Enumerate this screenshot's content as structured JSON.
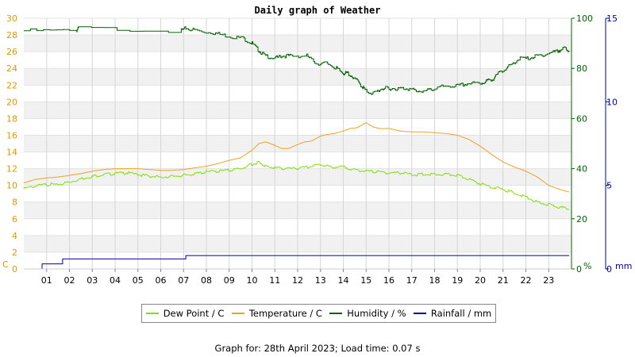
{
  "chart_data": {
    "type": "line",
    "title": "Daily graph of Weather",
    "x_ticks": [
      "01",
      "02",
      "03",
      "04",
      "05",
      "06",
      "07",
      "08",
      "09",
      "10",
      "11",
      "12",
      "13",
      "14",
      "15",
      "16",
      "17",
      "18",
      "19",
      "20",
      "21",
      "22",
      "23"
    ],
    "xlim": [
      0,
      24
    ],
    "axes": {
      "left": {
        "unit_label": "C",
        "range": [
          0,
          30
        ],
        "ticks": [
          0,
          2,
          4,
          6,
          8,
          10,
          12,
          14,
          16,
          18,
          20,
          22,
          24,
          26,
          28,
          30
        ],
        "color": "#e69500"
      },
      "right1": {
        "unit_label": "%",
        "range": [
          0,
          100
        ],
        "ticks": [
          0,
          20,
          40,
          60,
          80,
          100
        ],
        "color": "#006400"
      },
      "right2": {
        "unit_label": "mm",
        "range": [
          0,
          15
        ],
        "ticks": [
          0,
          5,
          10,
          15
        ],
        "color": "#0000a0"
      }
    },
    "series": [
      {
        "name": "Dew Point / C",
        "axis": "left",
        "color": "#7ee000",
        "style": "jagged",
        "x": [
          0,
          0.5,
          1,
          1.5,
          2,
          2.5,
          3,
          3.5,
          4,
          4.5,
          5,
          5.5,
          6,
          6.5,
          7,
          7.5,
          8,
          8.5,
          9,
          9.5,
          10,
          10.3,
          10.6,
          11,
          11.5,
          12,
          12.5,
          13,
          13.5,
          14,
          14.5,
          15,
          15.5,
          16,
          16.5,
          17,
          17.5,
          18,
          18.5,
          19,
          19.5,
          20,
          20.5,
          21,
          21.5,
          22,
          22.5,
          23,
          23.5,
          23.9
        ],
        "y": [
          9.6,
          9.9,
          10.1,
          10.1,
          10.4,
          10.8,
          11.1,
          11.3,
          11.4,
          11.5,
          11.3,
          11.1,
          11.0,
          11.1,
          11.2,
          11.4,
          11.6,
          11.7,
          11.8,
          12.0,
          12.5,
          12.8,
          12.3,
          12.1,
          12.0,
          12.0,
          12.2,
          12.5,
          12.2,
          12.2,
          11.9,
          11.7,
          11.6,
          11.5,
          11.5,
          11.3,
          11.3,
          11.3,
          11.3,
          11.2,
          10.7,
          10.2,
          9.8,
          9.5,
          9.1,
          8.6,
          8.0,
          7.7,
          7.4,
          7.1
        ]
      },
      {
        "name": "Temperature / C",
        "axis": "left",
        "color": "#f0a020",
        "style": "smooth",
        "x": [
          0,
          0.5,
          1,
          1.5,
          2,
          2.5,
          3,
          3.5,
          4,
          4.5,
          5,
          5.5,
          6,
          6.5,
          7,
          7.5,
          8,
          8.5,
          9,
          9.5,
          10,
          10.3,
          10.6,
          11,
          11.3,
          11.6,
          12,
          12.3,
          12.6,
          13,
          13.3,
          13.6,
          14,
          14.3,
          14.6,
          15,
          15.3,
          15.6,
          16,
          16.5,
          17,
          17.5,
          18,
          18.5,
          19,
          19.5,
          20,
          20.5,
          21,
          21.5,
          22,
          22.5,
          23,
          23.5,
          23.9
        ],
        "y": [
          10.3,
          10.7,
          10.9,
          11.0,
          11.2,
          11.4,
          11.7,
          11.9,
          12.0,
          12.0,
          12.0,
          11.9,
          11.8,
          11.8,
          11.9,
          12.1,
          12.3,
          12.6,
          13.0,
          13.3,
          14.2,
          15.0,
          15.2,
          14.8,
          14.4,
          14.4,
          14.9,
          15.2,
          15.3,
          15.9,
          16.1,
          16.2,
          16.5,
          16.8,
          16.9,
          17.5,
          17.0,
          16.8,
          16.8,
          16.5,
          16.4,
          16.4,
          16.3,
          16.2,
          16.0,
          15.5,
          14.7,
          13.7,
          12.8,
          12.2,
          11.7,
          11.0,
          10.0,
          9.5,
          9.2
        ]
      },
      {
        "name": "Humidity / %",
        "axis": "right1",
        "color": "#006400",
        "style": "step",
        "x": [
          0,
          2.3,
          2.4,
          6.9,
          7.1,
          7.6,
          8.4,
          8.9,
          9.6,
          10.0,
          10.3,
          10.6,
          11.0,
          11.3,
          11.7,
          12.4,
          12.8,
          13.3,
          13.7,
          14.0,
          14.2,
          14.5,
          14.8,
          15.0,
          15.3,
          15.7,
          16.0,
          16.4,
          16.8,
          17.2,
          17.6,
          18.0,
          18.5,
          19.0,
          19.5,
          20.0,
          20.3,
          20.6,
          20.9,
          21.3,
          21.7,
          22.1,
          22.5,
          23.0,
          23.4,
          23.7,
          23.9
        ],
        "y": [
          95,
          95,
          96,
          95,
          96,
          95,
          94,
          93,
          92,
          90,
          87,
          85,
          84,
          85,
          85,
          85,
          82,
          82,
          80,
          78,
          78,
          76,
          73,
          71,
          70,
          72,
          72,
          72,
          72,
          71,
          71,
          72,
          73,
          73,
          74,
          74,
          75,
          76,
          79,
          81,
          84,
          84,
          85,
          86,
          87,
          88,
          87
        ]
      },
      {
        "name": "Rainfall / mm",
        "axis": "right2",
        "color": "#0000a0",
        "style": "step",
        "x": [
          0,
          0.8,
          1.7,
          7.1,
          23.9
        ],
        "y": [
          0.0,
          0.3,
          0.6,
          0.8,
          0.8
        ]
      }
    ]
  },
  "footer": "Graph for: 28th April 2023; Load time: 0.07 s"
}
